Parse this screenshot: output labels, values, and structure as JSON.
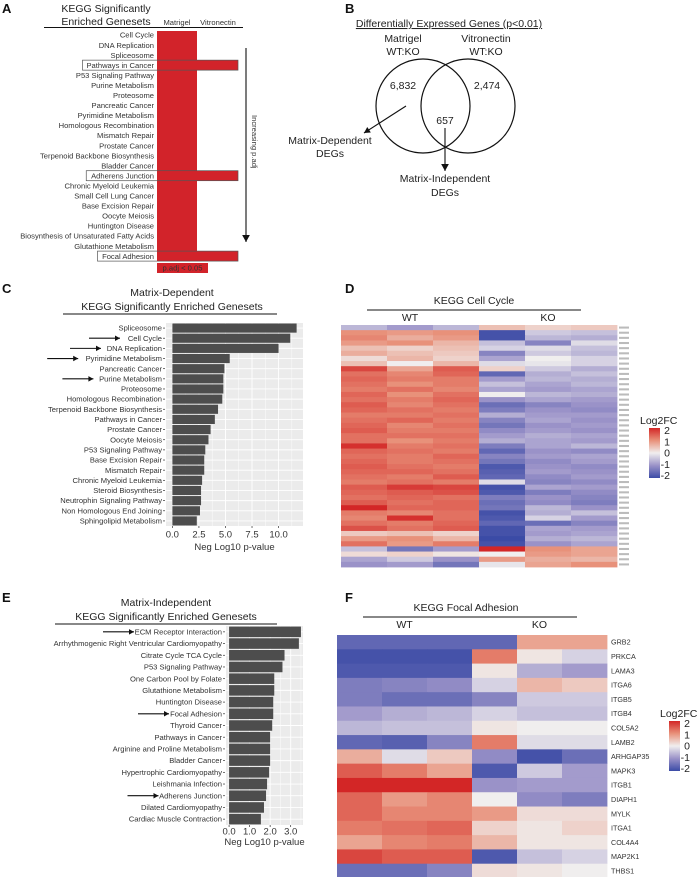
{
  "panel_labels": [
    "A",
    "B",
    "C",
    "D",
    "E",
    "F"
  ],
  "colors": {
    "significant": "#d2232a",
    "bar": "#4d4d4d",
    "plot_bg": "#ebebeb",
    "heat_low": "#3b4ba6",
    "heat_mid": "#f0eeee",
    "heat_high": "#d32626"
  },
  "chart_data": [
    {
      "panel": "A",
      "type": "table",
      "title": [
        "KEGG Significantly",
        "Enriched Genesets"
      ],
      "columns": [
        "Matrigel",
        "Vitronectin"
      ],
      "legend": "p.adj < 0.05",
      "arrow_label": "Increasing p.adj",
      "rows": [
        {
          "name": "Cell Cycle",
          "matrigel": true,
          "vitronectin": false
        },
        {
          "name": "DNA Replication",
          "matrigel": true,
          "vitronectin": false
        },
        {
          "name": "Spliceosome",
          "matrigel": true,
          "vitronectin": false
        },
        {
          "name": "Pathways in Cancer",
          "matrigel": true,
          "vitronectin": true
        },
        {
          "name": "P53 Signaling Pathway",
          "matrigel": true,
          "vitronectin": false
        },
        {
          "name": "Purine Metabolism",
          "matrigel": true,
          "vitronectin": false
        },
        {
          "name": "Proteosome",
          "matrigel": true,
          "vitronectin": false
        },
        {
          "name": "Pancreatic Cancer",
          "matrigel": true,
          "vitronectin": false
        },
        {
          "name": "Pyrimidine Metabolism",
          "matrigel": true,
          "vitronectin": false
        },
        {
          "name": "Homologous Recombination",
          "matrigel": true,
          "vitronectin": false
        },
        {
          "name": "Mismatch Repair",
          "matrigel": true,
          "vitronectin": false
        },
        {
          "name": "Prostate Cancer",
          "matrigel": true,
          "vitronectin": false
        },
        {
          "name": "Terpenoid Backbone Biosynthesis",
          "matrigel": true,
          "vitronectin": false
        },
        {
          "name": "Bladder Cancer",
          "matrigel": true,
          "vitronectin": false
        },
        {
          "name": "Adherens Junction",
          "matrigel": true,
          "vitronectin": true
        },
        {
          "name": "Chronic Myeloid Leukemia",
          "matrigel": true,
          "vitronectin": false
        },
        {
          "name": "Small Cell Lung Cancer",
          "matrigel": true,
          "vitronectin": false
        },
        {
          "name": "Base Excision Repair",
          "matrigel": true,
          "vitronectin": false
        },
        {
          "name": "Oocyte Meiosis",
          "matrigel": true,
          "vitronectin": false
        },
        {
          "name": "Huntington Disease",
          "matrigel": true,
          "vitronectin": false
        },
        {
          "name": "Biosynthesis of Unsaturated Fatty Acids",
          "matrigel": true,
          "vitronectin": false
        },
        {
          "name": "Glutathione Metabolism",
          "matrigel": true,
          "vitronectin": false
        },
        {
          "name": "Focal Adhesion",
          "matrigel": true,
          "vitronectin": true
        }
      ]
    },
    {
      "panel": "B",
      "type": "venn",
      "title": "Differentially Expressed Genes (p<0.01)",
      "sets": [
        {
          "name": [
            "Matrigel",
            "WT:KO"
          ],
          "only": "6,832"
        },
        {
          "name": [
            "Vitronectin",
            "WT:KO"
          ],
          "only": "2,474"
        }
      ],
      "overlap": "657",
      "annotations": [
        [
          "Matrix-Dependent",
          "DEGs"
        ],
        [
          "Matrix-Independent",
          "DEGs"
        ]
      ]
    },
    {
      "panel": "C",
      "type": "bar",
      "orientation": "horizontal",
      "title": [
        "Matrix-Dependent",
        "KEGG Significantly Enriched Genesets"
      ],
      "xlabel": "Neg Log10 p-value",
      "xticks": [
        "0.0",
        "2.5",
        "5.0",
        "7.5",
        "10.0"
      ],
      "xlim": [
        -0.6,
        12.3
      ],
      "grid": true,
      "categories": [
        "Spliceosome",
        "Cell Cycle",
        "DNA Replication",
        "Pyrimidine Metabolism",
        "Pancreatic Cancer",
        "Purine Metabolism",
        "Proteosome",
        "Homologous Recombination",
        "Terpenoid Backbone Biosynthesis",
        "Pathways in Cancer",
        "Prostate Cancer",
        "Oocyte Meiosis",
        "P53 Signaling Pathway",
        "Base Excision Repair",
        "Mismatch Repair",
        "Chronic Myeloid Leukemia",
        "Steroid Biosynthesis",
        "Neutrophin Signaling Pathway",
        "Non Homologous End Joining",
        "Sphingolipid Metabolism"
      ],
      "values": [
        11.7,
        11.1,
        10.0,
        5.4,
        4.9,
        4.8,
        4.8,
        4.7,
        4.3,
        4.0,
        3.6,
        3.4,
        3.1,
        3.0,
        3.0,
        2.8,
        2.7,
        2.7,
        2.6,
        2.3
      ],
      "arrowed": [
        "Cell Cycle",
        "DNA Replication",
        "Pyrimidine Metabolism",
        "Purine Metabolism"
      ]
    },
    {
      "panel": "D",
      "type": "heatmap",
      "title": "KEGG Cell Cycle",
      "groups": [
        "WT",
        "KO"
      ],
      "legend_title": "Log2FC",
      "legend_ticks": [
        "2",
        "1",
        "0",
        "-1",
        "-2"
      ],
      "range": [
        -2,
        2
      ],
      "values": [
        [
          -0.6,
          -0.9,
          -0.6,
          0.5,
          0.3,
          0.4
        ],
        [
          1.0,
          0.9,
          1.0,
          -1.9,
          -0.4,
          -0.5
        ],
        [
          1.1,
          0.7,
          0.9,
          -1.9,
          -0.6,
          -0.7
        ],
        [
          0.9,
          1.0,
          0.6,
          -0.5,
          -1.2,
          -0.2
        ],
        [
          0.5,
          0.3,
          0.5,
          -0.3,
          -0.2,
          -0.5
        ],
        [
          0.7,
          0.5,
          0.4,
          -1.2,
          -0.4,
          -0.6
        ],
        [
          0.2,
          0.6,
          0.3,
          -0.8,
          0.0,
          -0.3
        ],
        [
          0.5,
          0.0,
          0.6,
          -0.2,
          -0.1,
          -0.3
        ],
        [
          1.7,
          0.8,
          1.5,
          0.3,
          -0.4,
          -0.7
        ],
        [
          1.3,
          1.1,
          1.4,
          -1.6,
          -0.7,
          -0.5
        ],
        [
          1.4,
          1.2,
          1.2,
          -0.9,
          -0.6,
          -0.7
        ],
        [
          1.3,
          1.0,
          1.2,
          -0.5,
          -0.8,
          -0.6
        ],
        [
          1.2,
          1.3,
          1.1,
          -0.8,
          -0.9,
          -0.8
        ],
        [
          1.4,
          1.0,
          1.3,
          0.0,
          -0.6,
          -0.7
        ],
        [
          1.3,
          1.2,
          1.4,
          -1.0,
          -0.8,
          -0.9
        ],
        [
          1.5,
          1.1,
          1.3,
          -1.5,
          -1.2,
          -1.0
        ],
        [
          1.4,
          1.3,
          1.2,
          -1.3,
          -1.0,
          -1.1
        ],
        [
          1.2,
          1.2,
          1.3,
          -0.7,
          -0.9,
          -0.9
        ],
        [
          1.3,
          1.4,
          1.2,
          -1.2,
          -0.8,
          -1.0
        ],
        [
          1.4,
          1.1,
          1.3,
          -1.4,
          -1.0,
          -0.9
        ],
        [
          1.5,
          1.2,
          1.2,
          -1.1,
          -0.9,
          -1.0
        ],
        [
          1.3,
          1.3,
          1.3,
          -0.9,
          -0.7,
          -0.8
        ],
        [
          1.3,
          1.0,
          1.2,
          -0.7,
          -0.8,
          -0.9
        ],
        [
          1.9,
          1.2,
          1.3,
          -1.3,
          -0.8,
          -0.6
        ],
        [
          1.4,
          1.3,
          1.2,
          -1.6,
          -1.0,
          -1.1
        ],
        [
          1.3,
          1.2,
          1.4,
          -1.2,
          -0.9,
          -0.8
        ],
        [
          1.4,
          1.2,
          1.3,
          -1.4,
          -1.1,
          -0.9
        ],
        [
          1.5,
          1.3,
          1.2,
          -1.8,
          -1.0,
          -1.1
        ],
        [
          1.4,
          1.4,
          1.3,
          -1.7,
          -0.9,
          -1.0
        ],
        [
          1.3,
          1.2,
          1.5,
          -1.6,
          -1.1,
          -0.9
        ],
        [
          1.2,
          1.3,
          1.2,
          -0.2,
          -1.2,
          -1.1
        ],
        [
          1.5,
          1.8,
          1.7,
          -1.9,
          -0.8,
          -0.9
        ],
        [
          1.4,
          1.5,
          1.6,
          -1.8,
          -1.3,
          -1.1
        ],
        [
          1.3,
          1.4,
          1.3,
          -1.3,
          -1.0,
          -1.2
        ],
        [
          1.5,
          1.3,
          1.4,
          -1.5,
          -1.1,
          -1.3
        ],
        [
          2.0,
          1.4,
          1.4,
          -1.4,
          -0.6,
          -1.0
        ],
        [
          1.2,
          1.1,
          1.3,
          -1.9,
          -0.7,
          -0.5
        ],
        [
          1.1,
          1.9,
          1.3,
          -1.8,
          -0.3,
          -0.9
        ],
        [
          1.3,
          1.2,
          1.4,
          -1.6,
          -1.5,
          -1.2
        ],
        [
          1.6,
          1.3,
          1.5,
          -1.9,
          -0.8,
          -0.9
        ],
        [
          0.4,
          0.5,
          0.3,
          -1.9,
          -0.9,
          -0.8
        ],
        [
          0.9,
          1.0,
          0.6,
          -2.0,
          -0.7,
          -0.6
        ],
        [
          1.3,
          0.9,
          1.2,
          -1.9,
          -1.0,
          -0.8
        ],
        [
          -0.5,
          -1.4,
          -0.9,
          2.0,
          1.0,
          0.8
        ],
        [
          0.2,
          0.3,
          0.1,
          0.0,
          0.9,
          0.8
        ],
        [
          -0.8,
          -0.4,
          -1.0,
          0.9,
          0.7,
          0.6
        ],
        [
          -1.0,
          -0.9,
          -1.4,
          -0.1,
          0.8,
          1.0
        ]
      ]
    },
    {
      "panel": "E",
      "type": "bar",
      "orientation": "horizontal",
      "title": [
        "Matrix-Independent",
        "KEGG Significantly Enriched Genesets"
      ],
      "xlabel": "Neg Log10 p-value",
      "xticks": [
        "0.0",
        "1.0",
        "2.0",
        "3.0"
      ],
      "xlim": [
        -0.15,
        3.6
      ],
      "grid": true,
      "categories": [
        "ECM Receptor Interaction",
        "Arrhythmogenic Right Ventricular Cardiomyopathy",
        "Citrate Cycle TCA Cycle",
        "P53 Signaling Pathway",
        "One Carbon Pool by Folate",
        "Glutathione Metabolism",
        "Huntington Disease",
        "Focal Adhesion",
        "Thyroid Cancer",
        "Pathways in Cancer",
        "Arginine and Proline Metabolism",
        "Bladder Cancer",
        "Hypertrophic Cardiomyopathy",
        "Leishmania Infection",
        "Adherens Junction",
        "Dilated Cardiomyopathy",
        "Cardiac Muscle Contraction"
      ],
      "values": [
        3.5,
        3.4,
        2.7,
        2.6,
        2.2,
        2.2,
        2.15,
        2.15,
        2.1,
        2.0,
        2.0,
        2.0,
        1.95,
        1.85,
        1.8,
        1.7,
        1.55
      ],
      "arrowed": [
        "ECM Receptor Interaction",
        "Focal Adhesion",
        "Adherens Junction"
      ]
    },
    {
      "panel": "F",
      "type": "heatmap",
      "title": "KEGG Focal Adhesion",
      "groups": [
        "WT",
        "KO"
      ],
      "legend_title": "Log2FC",
      "legend_ticks": [
        "2",
        "1",
        "0",
        "-1",
        "-2"
      ],
      "range": [
        -2,
        2
      ],
      "genes": [
        "GRB2",
        "PRKCA",
        "LAMA3",
        "ITGA6",
        "ITGB5",
        "ITGB4",
        "COL5A2",
        "LAMB2",
        "ARHGAP35",
        "MAPK3",
        "ITGB1",
        "DIAPH1",
        "MYLK",
        "ITGA1",
        "COL4A4",
        "MAP2K1",
        "THBS1"
      ],
      "values": [
        [
          -1.6,
          -1.6,
          -1.6,
          -1.6,
          0.8,
          0.8
        ],
        [
          -1.9,
          -1.9,
          -1.9,
          1.2,
          0.1,
          -0.3
        ],
        [
          -1.8,
          -1.8,
          -1.8,
          0.1,
          -0.7,
          -0.9
        ],
        [
          -1.3,
          -1.2,
          -1.1,
          -0.3,
          0.6,
          0.4
        ],
        [
          -1.3,
          -1.5,
          -1.5,
          -1.2,
          -0.4,
          -0.4
        ],
        [
          -0.9,
          -0.7,
          -0.6,
          -0.3,
          -0.5,
          -0.5
        ],
        [
          -0.6,
          -0.5,
          -0.5,
          0.1,
          0.0,
          0.0
        ],
        [
          -1.6,
          -1.7,
          -1.2,
          1.2,
          -0.2,
          -0.2
        ],
        [
          0.7,
          -0.2,
          0.4,
          -1.1,
          -1.9,
          -1.5
        ],
        [
          1.5,
          1.2,
          0.8,
          -1.8,
          -0.4,
          -0.9
        ],
        [
          2.0,
          2.0,
          2.0,
          -1.0,
          -0.9,
          -0.9
        ],
        [
          1.4,
          0.9,
          1.1,
          0.0,
          -1.1,
          -1.3
        ],
        [
          1.4,
          1.1,
          1.1,
          0.9,
          0.2,
          0.2
        ],
        [
          1.2,
          1.3,
          1.4,
          0.3,
          0.1,
          0.3
        ],
        [
          0.8,
          1.1,
          1.2,
          0.6,
          0.1,
          0.1
        ],
        [
          1.7,
          1.5,
          1.5,
          -1.8,
          -0.5,
          -0.3
        ],
        [
          -1.5,
          -1.5,
          -1.2,
          0.2,
          0.1,
          0.0
        ]
      ]
    }
  ]
}
